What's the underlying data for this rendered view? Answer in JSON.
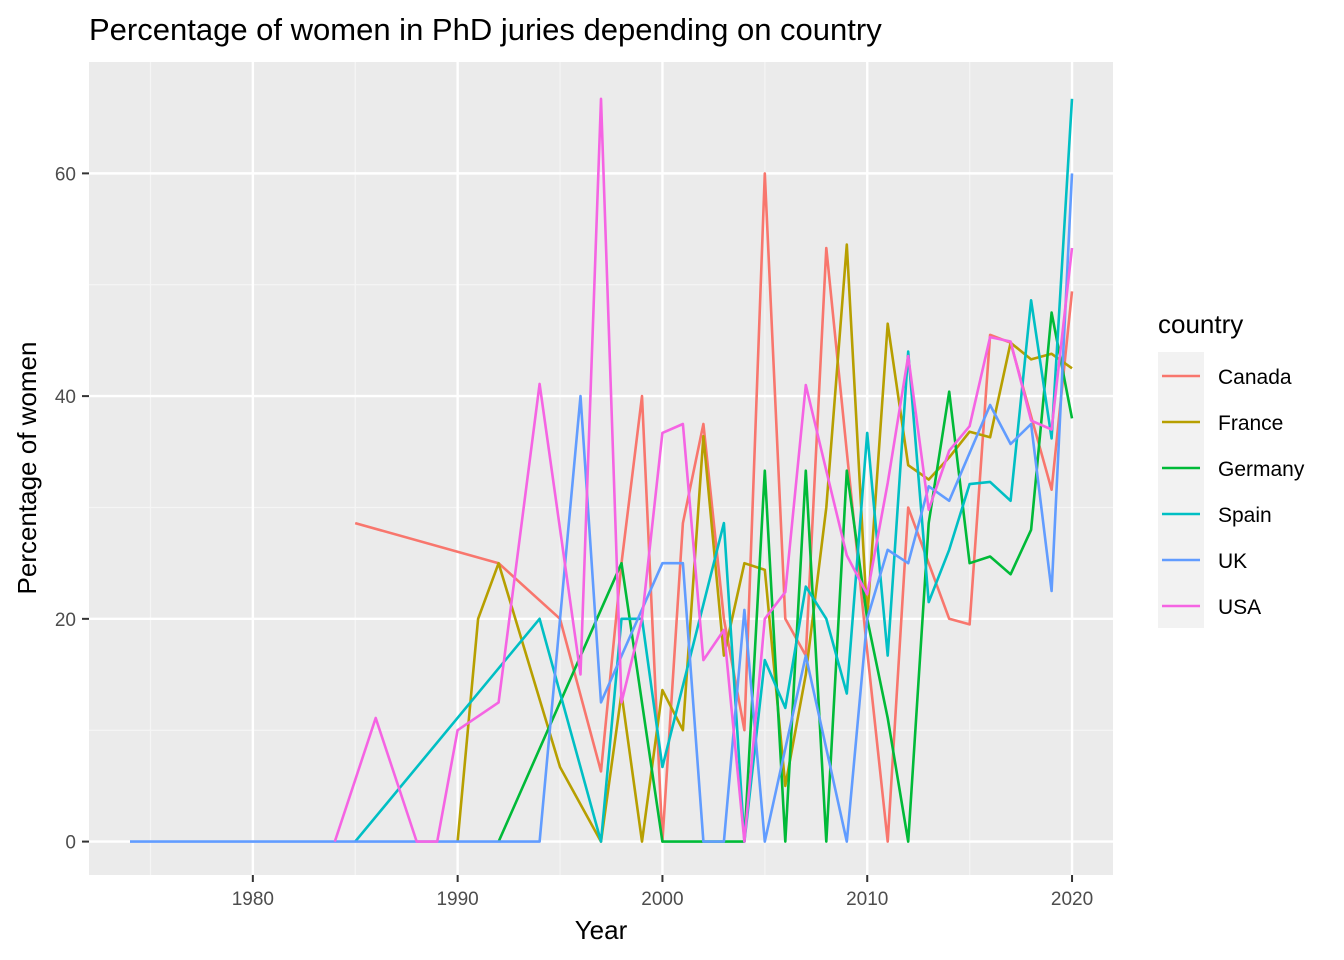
{
  "chart_data": {
    "type": "line",
    "title": "Percentage of women in PhD juries depending on country",
    "xlabel": "Year",
    "ylabel": "Percentage of women",
    "xlim": [
      1972,
      2022
    ],
    "ylim": [
      -3,
      70
    ],
    "xticks": [
      1980,
      1990,
      2000,
      2010,
      2020
    ],
    "yticks": [
      0,
      20,
      40,
      60
    ],
    "grid": true,
    "legend_title": "country",
    "legend_position": "right",
    "series": [
      {
        "name": "Canada",
        "color": "#F8766D",
        "x": [
          1985,
          1992,
          1995,
          1997,
          1998,
          1999,
          2000,
          2001,
          2002,
          2003,
          2004,
          2005,
          2006,
          2007,
          2008,
          2009,
          2010,
          2011,
          2012,
          2014,
          2015,
          2016,
          2017,
          2018,
          2019,
          2020
        ],
        "y": [
          28.6,
          25,
          20,
          6.3,
          25,
          40,
          0,
          28.6,
          37.5,
          20,
          10,
          60,
          20,
          16.7,
          53.3,
          35,
          17.1,
          0,
          30,
          20,
          19.5,
          45.5,
          44.8,
          38.2,
          31.6,
          49.4
        ]
      },
      {
        "name": "France",
        "color": "#B79F00",
        "x": [
          1990,
          1991,
          1992,
          1995,
          1997,
          1998,
          1999,
          2000,
          2001,
          2002,
          2003,
          2004,
          2005,
          2006,
          2007,
          2008,
          2009,
          2010,
          2011,
          2012,
          2013,
          2014,
          2015,
          2016,
          2017,
          2018,
          2019,
          2020
        ],
        "y": [
          0,
          20,
          25,
          6.7,
          0,
          13.3,
          0,
          13.6,
          10,
          36.4,
          16.7,
          25,
          24.4,
          5,
          15,
          30,
          53.6,
          20,
          46.5,
          33.8,
          32.5,
          34.5,
          36.8,
          36.3,
          44.8,
          43.3,
          43.8,
          42.5
        ]
      },
      {
        "name": "Germany",
        "color": "#00BA38",
        "x": [
          1992,
          1998,
          2000,
          2001,
          2002,
          2003,
          2004,
          2005,
          2006,
          2007,
          2008,
          2009,
          2010,
          2011,
          2012,
          2013,
          2014,
          2015,
          2016,
          2017,
          2018,
          2019,
          2020
        ],
        "y": [
          0,
          25,
          0,
          0,
          0,
          0,
          0,
          33.3,
          0,
          33.3,
          0,
          33.3,
          20,
          11.1,
          0,
          28.6,
          40.4,
          25,
          25.6,
          24,
          28,
          47.5,
          38
        ]
      },
      {
        "name": "Spain",
        "color": "#00BFC4",
        "x": [
          1985,
          1994,
          1997,
          1998,
          1999,
          2000,
          2003,
          2004,
          2005,
          2006,
          2007,
          2008,
          2009,
          2010,
          2011,
          2012,
          2013,
          2014,
          2015,
          2016,
          2017,
          2018,
          2019,
          2020
        ],
        "y": [
          0,
          20,
          0,
          20,
          20,
          6.7,
          28.6,
          0,
          16.3,
          12,
          22.9,
          20,
          13.3,
          36.7,
          16.7,
          44,
          21.5,
          26.2,
          32.1,
          32.3,
          30.6,
          48.6,
          36.2,
          66.7
        ]
      },
      {
        "name": "UK",
        "color": "#619CFF",
        "x": [
          1974,
          1994,
          1996,
          1997,
          2000,
          2001,
          2002,
          2003,
          2004,
          2005,
          2007,
          2009,
          2010,
          2011,
          2012,
          2013,
          2014,
          2016,
          2017,
          2018,
          2019,
          2020
        ],
        "y": [
          0,
          0,
          40,
          12.5,
          25,
          25,
          0,
          0,
          20.8,
          0,
          16.7,
          0,
          20,
          26.2,
          25,
          31.9,
          30.6,
          39.2,
          35.7,
          37.5,
          22.5,
          60
        ]
      },
      {
        "name": "USA",
        "color": "#F564E3",
        "x": [
          1984,
          1986,
          1988,
          1989,
          1990,
          1992,
          1994,
          1996,
          1997,
          1998,
          1999,
          2000,
          2001,
          2002,
          2003,
          2004,
          2005,
          2006,
          2007,
          2008,
          2009,
          2010,
          2011,
          2012,
          2013,
          2014,
          2015,
          2016,
          2017,
          2018,
          2019,
          2020
        ],
        "y": [
          0,
          11.1,
          0,
          0,
          10,
          12.5,
          41.1,
          15,
          66.7,
          12.5,
          20,
          36.7,
          37.5,
          16.3,
          19,
          0,
          20,
          22.4,
          41,
          33.3,
          25.7,
          22.2,
          32.2,
          43.6,
          29.8,
          35.1,
          37.3,
          45.3,
          44.9,
          37.8,
          37,
          53.3
        ]
      }
    ]
  }
}
